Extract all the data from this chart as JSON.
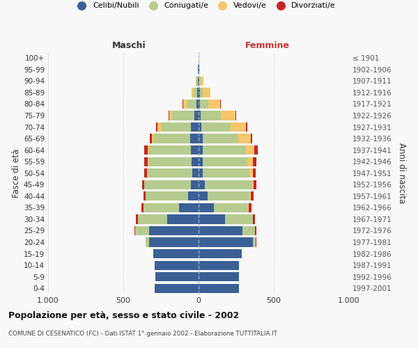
{
  "age_groups": [
    "0-4",
    "5-9",
    "10-14",
    "15-19",
    "20-24",
    "25-29",
    "30-34",
    "35-39",
    "40-44",
    "45-49",
    "50-54",
    "55-59",
    "60-64",
    "65-69",
    "70-74",
    "75-79",
    "80-84",
    "85-89",
    "90-94",
    "95-99",
    "100+"
  ],
  "birth_years": [
    "1997-2001",
    "1992-1996",
    "1987-1991",
    "1982-1986",
    "1977-1981",
    "1972-1976",
    "1967-1971",
    "1962-1966",
    "1957-1961",
    "1952-1956",
    "1947-1951",
    "1942-1946",
    "1937-1941",
    "1932-1936",
    "1927-1931",
    "1922-1926",
    "1917-1921",
    "1912-1916",
    "1907-1911",
    "1902-1906",
    "≤ 1901"
  ],
  "colors": {
    "celibi": "#3a6096",
    "coniugati": "#b5cc8e",
    "vedovi": "#f5c76a",
    "divorziati": "#cc2222"
  },
  "maschi": {
    "celibi": [
      290,
      285,
      290,
      300,
      330,
      330,
      210,
      130,
      70,
      50,
      40,
      45,
      50,
      55,
      50,
      30,
      15,
      8,
      5,
      3,
      2
    ],
    "coniugati": [
      0,
      0,
      0,
      2,
      20,
      90,
      195,
      235,
      280,
      310,
      300,
      290,
      280,
      240,
      200,
      145,
      60,
      25,
      10,
      2,
      0
    ],
    "vedovi": [
      0,
      0,
      0,
      0,
      0,
      0,
      0,
      0,
      2,
      2,
      3,
      5,
      10,
      15,
      25,
      20,
      25,
      15,
      5,
      0,
      0
    ],
    "divorziati": [
      0,
      0,
      0,
      0,
      2,
      5,
      12,
      15,
      15,
      15,
      18,
      20,
      20,
      12,
      8,
      5,
      5,
      0,
      0,
      0,
      0
    ]
  },
  "femmine": {
    "celibi": [
      270,
      270,
      270,
      285,
      360,
      290,
      175,
      100,
      60,
      40,
      30,
      30,
      30,
      30,
      20,
      15,
      10,
      8,
      5,
      3,
      2
    ],
    "coniugati": [
      0,
      0,
      0,
      2,
      20,
      85,
      185,
      230,
      280,
      315,
      310,
      295,
      285,
      235,
      195,
      135,
      55,
      20,
      8,
      2,
      0
    ],
    "vedovi": [
      0,
      0,
      0,
      0,
      0,
      2,
      2,
      2,
      5,
      10,
      20,
      35,
      55,
      80,
      100,
      95,
      80,
      50,
      20,
      5,
      1
    ],
    "divorziati": [
      0,
      0,
      0,
      0,
      2,
      5,
      15,
      18,
      20,
      18,
      20,
      22,
      25,
      12,
      10,
      5,
      5,
      0,
      0,
      0,
      0
    ]
  },
  "xlim": 1000,
  "title": "Popolazione per età, sesso e stato civile - 2002",
  "subtitle": "COMUNE DI CESENATICO (FC) - Dati ISTAT 1° gennaio 2002 - Elaborazione TUTTITALIA.IT",
  "ylabel_left": "Fasce di età",
  "ylabel_right": "Anni di nascita",
  "xlabel_maschi": "Maschi",
  "xlabel_femmine": "Femmine",
  "bg_color": "#f8f8f8",
  "bar_height": 0.8,
  "legend_labels": [
    "Celibi/Nubili",
    "Coniugati/e",
    "Vedovi/e",
    "Divorziati/e"
  ]
}
